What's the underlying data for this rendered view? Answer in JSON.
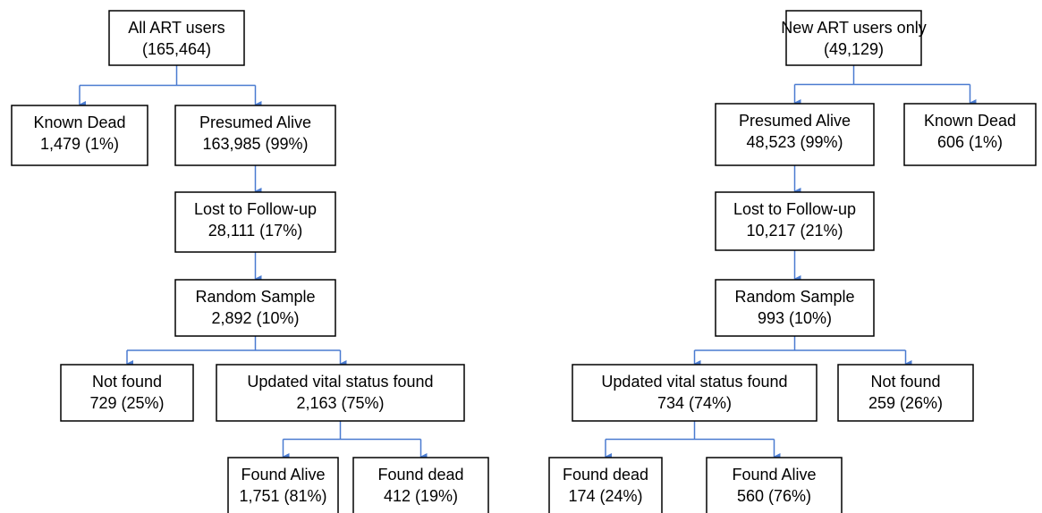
{
  "nodes": [
    {
      "title": "All ART users",
      "count": "(165,464)"
    },
    {
      "title": "Known Dead",
      "count": "1,479 (1%)"
    },
    {
      "title": "Presumed Alive",
      "count": "163,985 (99%)"
    },
    {
      "title": "Lost to Follow-up",
      "count": "28,111 (17%)"
    },
    {
      "title": "Random Sample",
      "count": "2,892 (10%)"
    },
    {
      "title": "Not found",
      "count": "729 (25%)"
    },
    {
      "title": "Updated vital status found",
      "count": "2,163 (75%)"
    },
    {
      "title": "Found Alive",
      "count": "1,751 (81%)"
    },
    {
      "title": "Found dead",
      "count": "412 (19%)"
    },
    {
      "title": "New ART users only",
      "count": "(49,129)"
    },
    {
      "title": "Presumed Alive",
      "count": "48,523 (99%)"
    },
    {
      "title": "Known Dead",
      "count": "606 (1%)"
    },
    {
      "title": "Lost to Follow-up",
      "count": "10,217 (21%)"
    },
    {
      "title": "Random Sample",
      "count": "993 (10%)"
    },
    {
      "title": "Updated vital status found",
      "count": "734 (74%)"
    },
    {
      "title": "Not found",
      "count": "259 (26%)"
    },
    {
      "title": "Found dead",
      "count": "174 (24%)"
    },
    {
      "title": "Found Alive",
      "count": "560 (76%)"
    }
  ]
}
